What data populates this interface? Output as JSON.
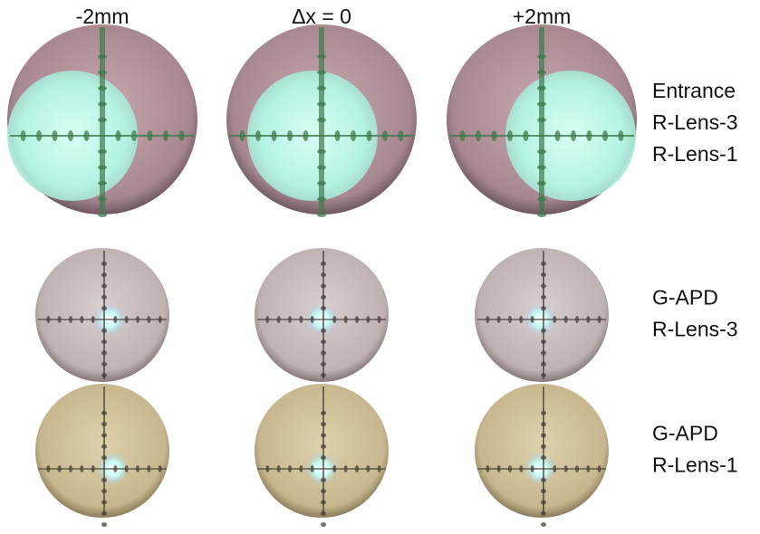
{
  "columns": [
    "-2mm",
    "Δx = 0",
    "+2mm"
  ],
  "rows": [
    {
      "labels": [
        "Entrance",
        "R-Lens-3",
        "R-Lens-1"
      ]
    },
    {
      "labels": [
        "G-APD",
        "R-Lens-3"
      ]
    },
    {
      "labels": [
        "G-APD",
        "R-Lens-1"
      ]
    }
  ]
}
